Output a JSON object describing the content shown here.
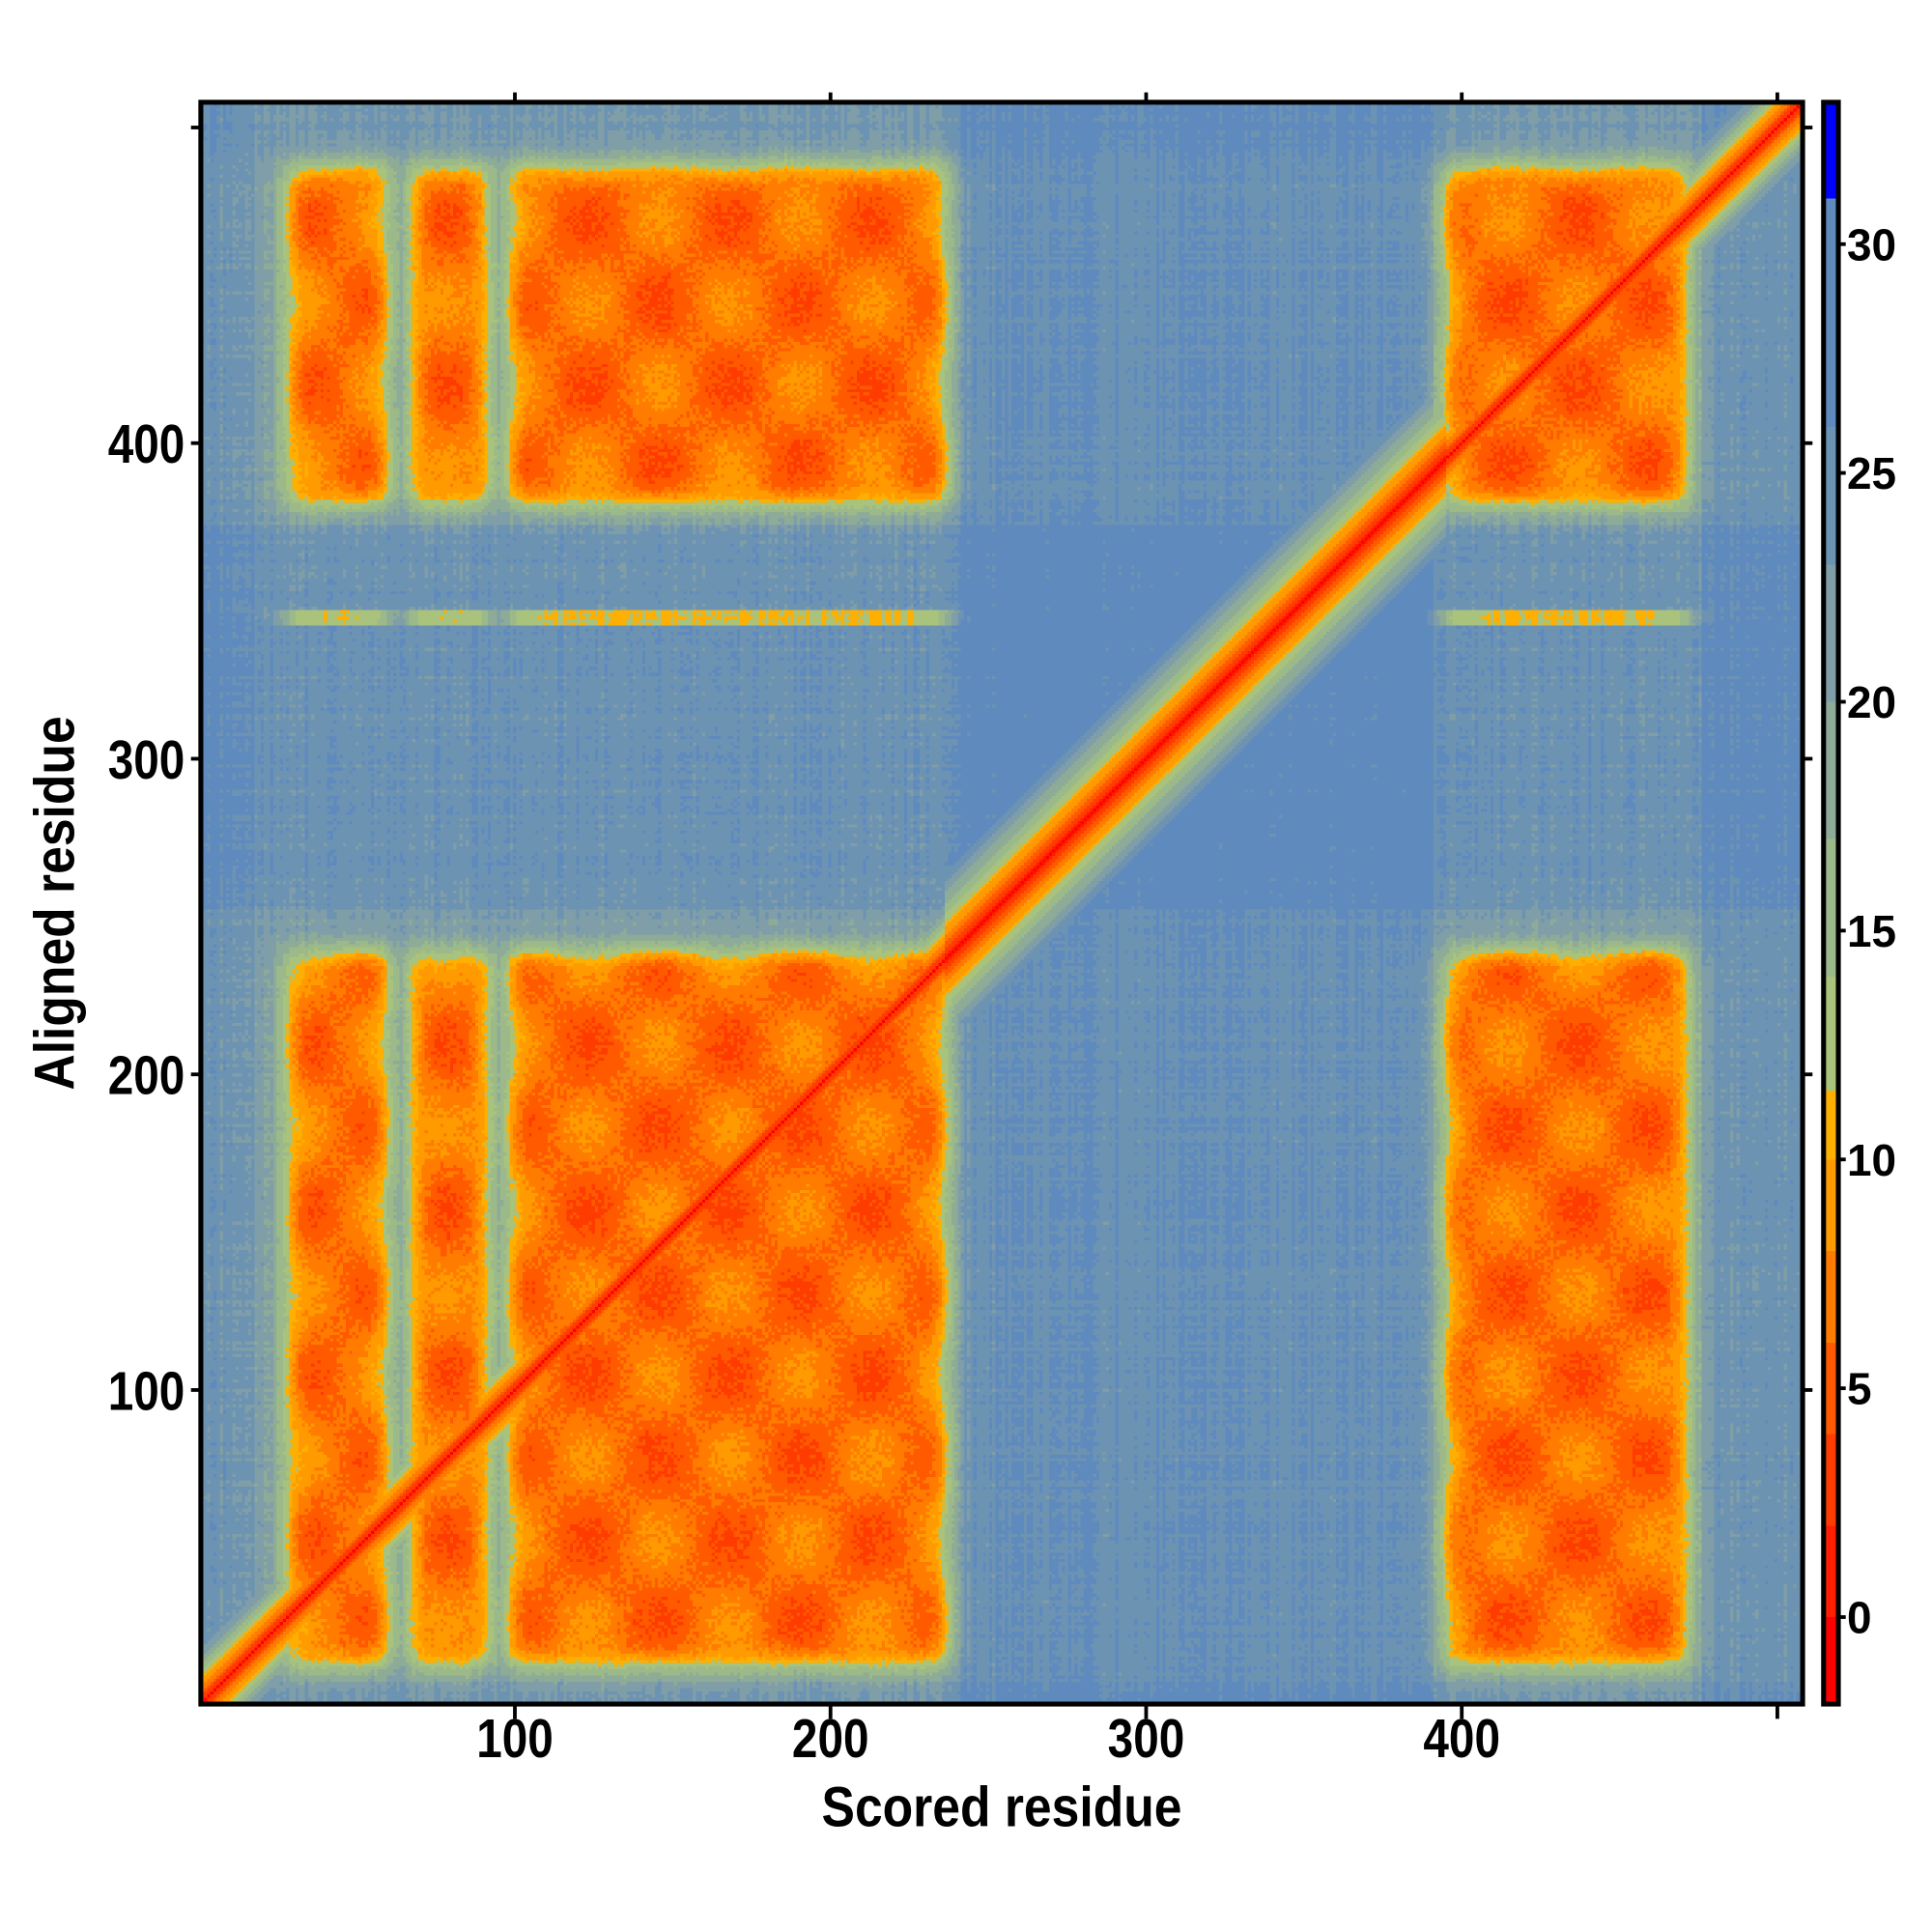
{
  "chart_data": {
    "type": "heatmap",
    "title": "",
    "xlabel": "Scored residue",
    "ylabel": "Aligned residue",
    "xlim": [
      0.5,
      508
    ],
    "ylim": [
      0.5,
      508
    ],
    "n_residues": 508,
    "xticks": [
      {
        "value": 100,
        "label": "100"
      },
      {
        "value": 200,
        "label": "200"
      },
      {
        "value": 300,
        "label": "300"
      },
      {
        "value": 400,
        "label": "400"
      },
      {
        "value": 500,
        "label": ""
      }
    ],
    "yticks": [
      {
        "value": 100,
        "label": "100"
      },
      {
        "value": 200,
        "label": "200"
      },
      {
        "value": 300,
        "label": "300"
      },
      {
        "value": 400,
        "label": "400"
      },
      {
        "value": 500,
        "label": ""
      }
    ],
    "colorbar": {
      "range": [
        -1.9,
        33.1
      ],
      "ticks": [
        {
          "value": 0,
          "label": "0"
        },
        {
          "value": 5,
          "label": "5"
        },
        {
          "value": 10,
          "label": "10"
        },
        {
          "value": 15,
          "label": "15"
        },
        {
          "value": 20,
          "label": "20"
        },
        {
          "value": 25,
          "label": "25"
        },
        {
          "value": 30,
          "label": "30"
        }
      ],
      "stops": [
        {
          "max": 0,
          "color": "#ff0000"
        },
        {
          "max": 2,
          "color": "#ff1e00"
        },
        {
          "max": 4,
          "color": "#ff3c00"
        },
        {
          "max": 6,
          "color": "#ff5a00"
        },
        {
          "max": 8,
          "color": "#ff7c00"
        },
        {
          "max": 10,
          "color": "#ff9a00"
        },
        {
          "max": 11.5,
          "color": "#ffaf00"
        },
        {
          "max": 14,
          "color": "#a9c27c"
        },
        {
          "max": 17,
          "color": "#9cb98a"
        },
        {
          "max": 20,
          "color": "#8eab98"
        },
        {
          "max": 23,
          "color": "#7f9ea7"
        },
        {
          "max": 26,
          "color": "#6d93b3"
        },
        {
          "max": 31,
          "color": "#5f8abd"
        },
        {
          "max": 99,
          "color": "#0000ff"
        }
      ]
    },
    "confident_blocks": {
      "scored_ranges": [
        [
          27,
          61
        ],
        [
          66,
          93
        ],
        [
          97,
          238
        ],
        [
          394,
          473
        ]
      ],
      "aligned_ranges": [
        [
          12,
          240
        ],
        [
          380,
          489
        ]
      ],
      "intra_block_error": 5,
      "background_error": 26
    }
  }
}
